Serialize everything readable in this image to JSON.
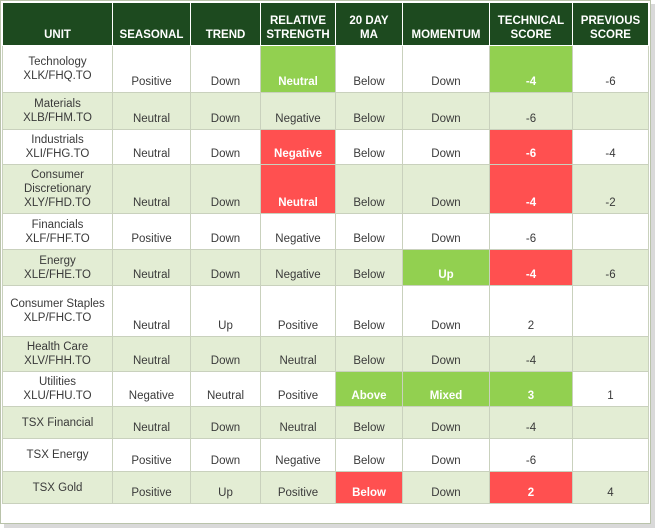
{
  "headers": {
    "unit": "UNIT",
    "seasonal": "SEASONAL",
    "trend": "TREND",
    "rs_1": "RELATIVE",
    "rs_2": "STRENGTH",
    "ma_1": "20 DAY",
    "ma_2": "MA",
    "momentum": "MOMENTUM",
    "tech_1": "TECHNICAL",
    "tech_2": "SCORE",
    "prev_1": "PREVIOUS",
    "prev_2": "SCORE"
  },
  "colors": {
    "header_bg": "#1d4a1f",
    "alt_row": "#e3edd4",
    "positive_cell": "#92d050",
    "negative_cell": "#ff5050"
  },
  "rows": [
    {
      "unit": [
        "Technology",
        "XLK/FHQ.TO"
      ],
      "seasonal": "Positive",
      "trend": "Down",
      "rs": "Neutral",
      "ma": "Below",
      "momentum": "Down",
      "score": "-4",
      "prev": "-6"
    },
    {
      "unit": [
        "Materials",
        "XLB/FHM.TO"
      ],
      "seasonal": "Neutral",
      "trend": "Down",
      "rs": "Negative",
      "ma": "Below",
      "momentum": "Down",
      "score": "-6",
      "prev": ""
    },
    {
      "unit": [
        "Industrials",
        "XLI/FHG.TO"
      ],
      "seasonal": "Neutral",
      "trend": "Down",
      "rs": "Negative",
      "ma": "Below",
      "momentum": "Down",
      "score": "-6",
      "prev": "-4"
    },
    {
      "unit": [
        "Consumer",
        "Discretionary",
        "XLY/FHD.TO"
      ],
      "seasonal": "Neutral",
      "trend": "Down",
      "rs": "Neutral",
      "ma": "Below",
      "momentum": "Down",
      "score": "-4",
      "prev": "-2"
    },
    {
      "unit": [
        "Financials",
        "XLF/FHF.TO"
      ],
      "seasonal": "Positive",
      "trend": "Down",
      "rs": "Negative",
      "ma": "Below",
      "momentum": "Down",
      "score": "-6",
      "prev": ""
    },
    {
      "unit": [
        "Energy",
        "XLE/FHE.TO"
      ],
      "seasonal": "Neutral",
      "trend": "Down",
      "rs": "Negative",
      "ma": "Below",
      "momentum": "Up",
      "score": "-4",
      "prev": "-6"
    },
    {
      "unit": [
        "Consumer Staples",
        "XLP/FHC.TO"
      ],
      "seasonal": "Neutral",
      "trend": "Up",
      "rs": "Positive",
      "ma": "Below",
      "momentum": "Down",
      "score": "2",
      "prev": ""
    },
    {
      "unit": [
        "Health Care",
        "XLV/FHH.TO"
      ],
      "seasonal": "Neutral",
      "trend": "Down",
      "rs": "Neutral",
      "ma": "Below",
      "momentum": "Down",
      "score": "-4",
      "prev": ""
    },
    {
      "unit": [
        "Utilities",
        "XLU/FHU.TO"
      ],
      "seasonal": "Negative",
      "trend": "Neutral",
      "rs": "Positive",
      "ma": "Above",
      "momentum": "Mixed",
      "score": "3",
      "prev": "1"
    },
    {
      "unit": [
        "TSX Financial"
      ],
      "seasonal": "Neutral",
      "trend": "Down",
      "rs": "Neutral",
      "ma": "Below",
      "momentum": "Down",
      "score": "-4",
      "prev": ""
    },
    {
      "unit": [
        "TSX Energy"
      ],
      "seasonal": "Positive",
      "trend": "Down",
      "rs": "Negative",
      "ma": "Below",
      "momentum": "Down",
      "score": "-6",
      "prev": ""
    },
    {
      "unit": [
        "TSX Gold"
      ],
      "seasonal": "Positive",
      "trend": "Up",
      "rs": "Positive",
      "ma": "Below",
      "momentum": "Down",
      "score": "2",
      "prev": "4"
    }
  ]
}
